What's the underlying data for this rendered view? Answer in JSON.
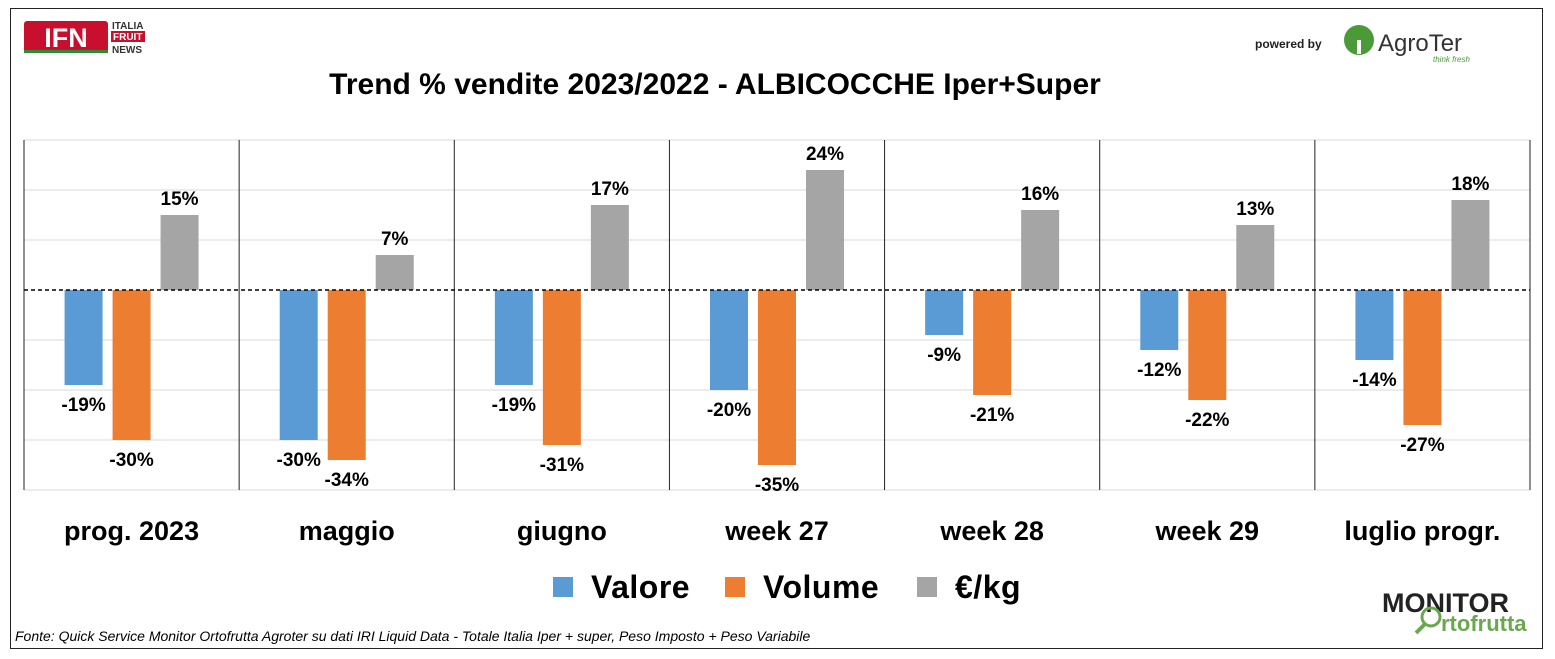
{
  "logos": {
    "ifn": {
      "mark": "IFN",
      "lines": [
        "ITALIA",
        "FRUIT",
        "NEWS"
      ]
    },
    "powered_by": "powered by",
    "agroter": {
      "name": "AgroTer",
      "tagline": "think fresh"
    },
    "monitor": {
      "line1": "MONITOR",
      "line2": "rtofrutta"
    }
  },
  "colors": {
    "valore": "#5B9BD5",
    "volume": "#ED7D31",
    "prezzo": "#A5A5A5"
  },
  "chart_data": {
    "type": "bar",
    "title": "Trend % vendite 2023/2022 - ALBICOCCHE Iper+Super",
    "categories": [
      "prog. 2023",
      "maggio",
      "giugno",
      "week 27",
      "week 28",
      "week 29",
      "luglio progr."
    ],
    "series": [
      {
        "name": "Valore",
        "values": [
          -19,
          -30,
          -19,
          -20,
          -9,
          -12,
          -14
        ]
      },
      {
        "name": "Volume",
        "values": [
          -30,
          -34,
          -31,
          -35,
          -21,
          -22,
          -27
        ]
      },
      {
        "name": "€/kg",
        "values": [
          15,
          7,
          17,
          24,
          16,
          13,
          18
        ]
      }
    ],
    "value_suffix": "%",
    "ylim": [
      -40,
      30
    ],
    "grid": true,
    "legend": "bottom",
    "source": "Fonte: Quick Service Monitor Ortofrutta Agroter su dati IRI Liquid Data - Totale Italia Iper + super, Peso Imposto + Peso Variabile"
  }
}
